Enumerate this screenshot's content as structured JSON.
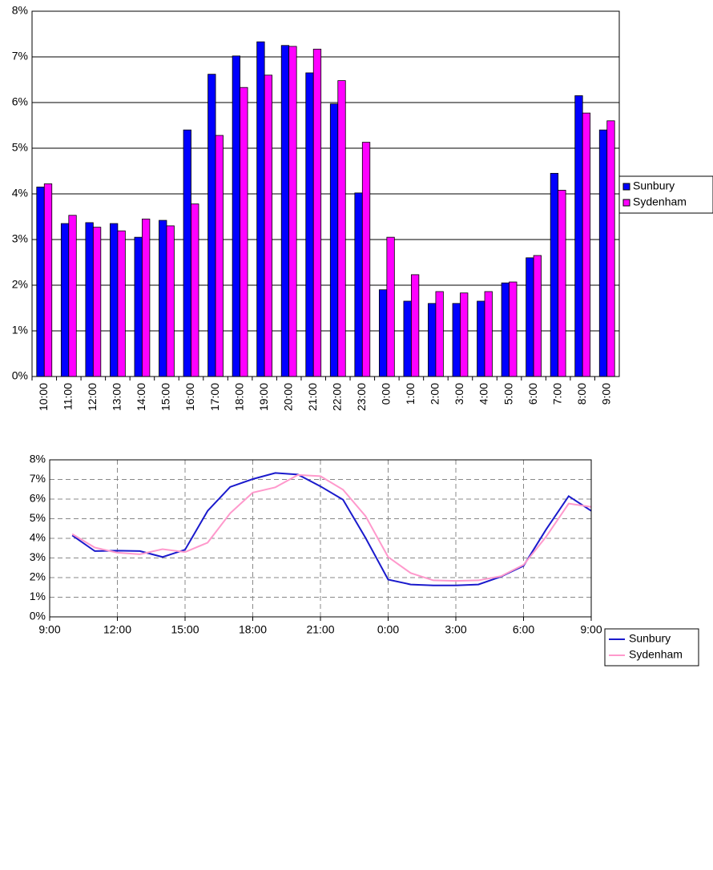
{
  "chart_data": [
    {
      "type": "bar",
      "categories": [
        "10:00",
        "11:00",
        "12:00",
        "13:00",
        "14:00",
        "15:00",
        "16:00",
        "17:00",
        "18:00",
        "19:00",
        "20:00",
        "21:00",
        "22:00",
        "23:00",
        "0:00",
        "1:00",
        "2:00",
        "3:00",
        "4:00",
        "5:00",
        "6:00",
        "7:00",
        "8:00",
        "9:00"
      ],
      "series": [
        {
          "name": "Sunbury",
          "color": "#0000ff",
          "values": [
            4.15,
            3.35,
            3.37,
            3.35,
            3.05,
            3.42,
            5.4,
            6.62,
            7.02,
            7.33,
            7.25,
            6.65,
            5.97,
            4.02,
            1.9,
            1.65,
            1.6,
            1.6,
            1.65,
            2.05,
            2.6,
            4.45,
            6.15,
            5.4
          ]
        },
        {
          "name": "Sydenham",
          "color": "#ff00ff",
          "values": [
            4.22,
            3.53,
            3.27,
            3.19,
            3.45,
            3.3,
            3.78,
            5.28,
            6.33,
            6.6,
            7.23,
            7.17,
            6.48,
            5.13,
            3.05,
            2.23,
            1.86,
            1.83,
            1.86,
            2.07,
            2.65,
            4.08,
            5.77,
            5.6
          ]
        }
      ],
      "ylim": [
        0,
        8
      ],
      "yticks": [
        {
          "value": 0,
          "label": "0%"
        },
        {
          "value": 1,
          "label": "1%"
        },
        {
          "value": 2,
          "label": "2%"
        },
        {
          "value": 3,
          "label": "3%"
        },
        {
          "value": 4,
          "label": "4%"
        },
        {
          "value": 5,
          "label": "5%"
        },
        {
          "value": 6,
          "label": "6%"
        },
        {
          "value": 7,
          "label": "7%"
        },
        {
          "value": 8,
          "label": "8%"
        }
      ],
      "grid": true,
      "legend": "right"
    },
    {
      "type": "line",
      "categories": [
        "9:00",
        null,
        null,
        "12:00",
        null,
        null,
        "15:00",
        null,
        null,
        "18:00",
        null,
        null,
        "21:00",
        null,
        null,
        "0:00",
        null,
        null,
        "3:00",
        null,
        null,
        "6:00",
        null,
        null,
        "9:00"
      ],
      "series": [
        {
          "name": "Sunbury",
          "color": "#1a1acc",
          "values": [
            null,
            4.15,
            3.35,
            3.37,
            3.35,
            3.05,
            3.42,
            5.4,
            6.62,
            7.02,
            7.33,
            7.25,
            6.65,
            5.97,
            4.02,
            1.9,
            1.65,
            1.6,
            1.6,
            1.65,
            2.05,
            2.6,
            4.45,
            6.15,
            5.4
          ]
        },
        {
          "name": "Sydenham",
          "color": "#ff99cc",
          "values": [
            null,
            4.22,
            3.53,
            3.27,
            3.19,
            3.45,
            3.3,
            3.78,
            5.28,
            6.33,
            6.6,
            7.23,
            7.17,
            6.48,
            5.13,
            3.05,
            2.23,
            1.86,
            1.83,
            1.86,
            2.07,
            2.65,
            4.08,
            5.77,
            5.6
          ]
        }
      ],
      "ylim": [
        0,
        8
      ],
      "yticks": [
        {
          "value": 0,
          "label": "0%"
        },
        {
          "value": 1,
          "label": "1%"
        },
        {
          "value": 2,
          "label": "2%"
        },
        {
          "value": 3,
          "label": "3%"
        },
        {
          "value": 4,
          "label": "4%"
        },
        {
          "value": 5,
          "label": "5%"
        },
        {
          "value": 6,
          "label": "6%"
        },
        {
          "value": 7,
          "label": "7%"
        },
        {
          "value": 8,
          "label": "8%"
        }
      ],
      "grid": true,
      "legend": "right"
    }
  ]
}
